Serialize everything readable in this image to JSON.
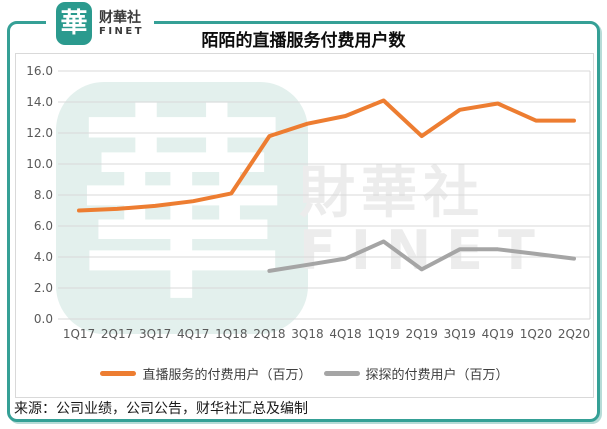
{
  "header": {
    "brand": {
      "seal_char": "華",
      "name": "财華社",
      "subname": "FINET"
    },
    "title": "陌陌的直播服务付费用户数"
  },
  "watermark": {
    "seal_char": "華",
    "line1": "財華社",
    "line2": "FINET"
  },
  "chart_data": {
    "type": "line",
    "title": "陌陌的直播服务付费用户数",
    "categories": [
      "1Q17",
      "2Q17",
      "3Q17",
      "4Q17",
      "1Q18",
      "2Q18",
      "3Q18",
      "4Q18",
      "1Q19",
      "2Q19",
      "3Q19",
      "4Q19",
      "1Q20",
      "2Q20"
    ],
    "series": [
      {
        "name": "直播服务的付费用户（百万）",
        "color": "#ED7D31",
        "values": [
          7.0,
          7.1,
          7.3,
          7.6,
          8.1,
          11.8,
          12.6,
          13.1,
          14.1,
          11.8,
          13.5,
          13.9,
          12.8,
          12.8
        ]
      },
      {
        "name": "探探的付费用户（百万）",
        "color": "#A5A5A5",
        "values": [
          null,
          null,
          null,
          null,
          null,
          3.1,
          3.5,
          3.9,
          5.0,
          3.2,
          4.5,
          4.5,
          4.2,
          3.9
        ]
      }
    ],
    "xlabel": "",
    "ylabel": "",
    "ylim": [
      0,
      16
    ],
    "yticks": [
      "0.0",
      "2.0",
      "4.0",
      "6.0",
      "8.0",
      "10.0",
      "12.0",
      "14.0",
      "16.0"
    ],
    "grid": "horizontal",
    "gridline_color": "#D9D9D9",
    "legend_position": "bottom"
  },
  "footer": {
    "source": "来源：公司业绩，公司公告，财华社汇总及编制"
  },
  "colors": {
    "accent_teal": "#2B9A8E",
    "frame_teal": "#35A096"
  }
}
